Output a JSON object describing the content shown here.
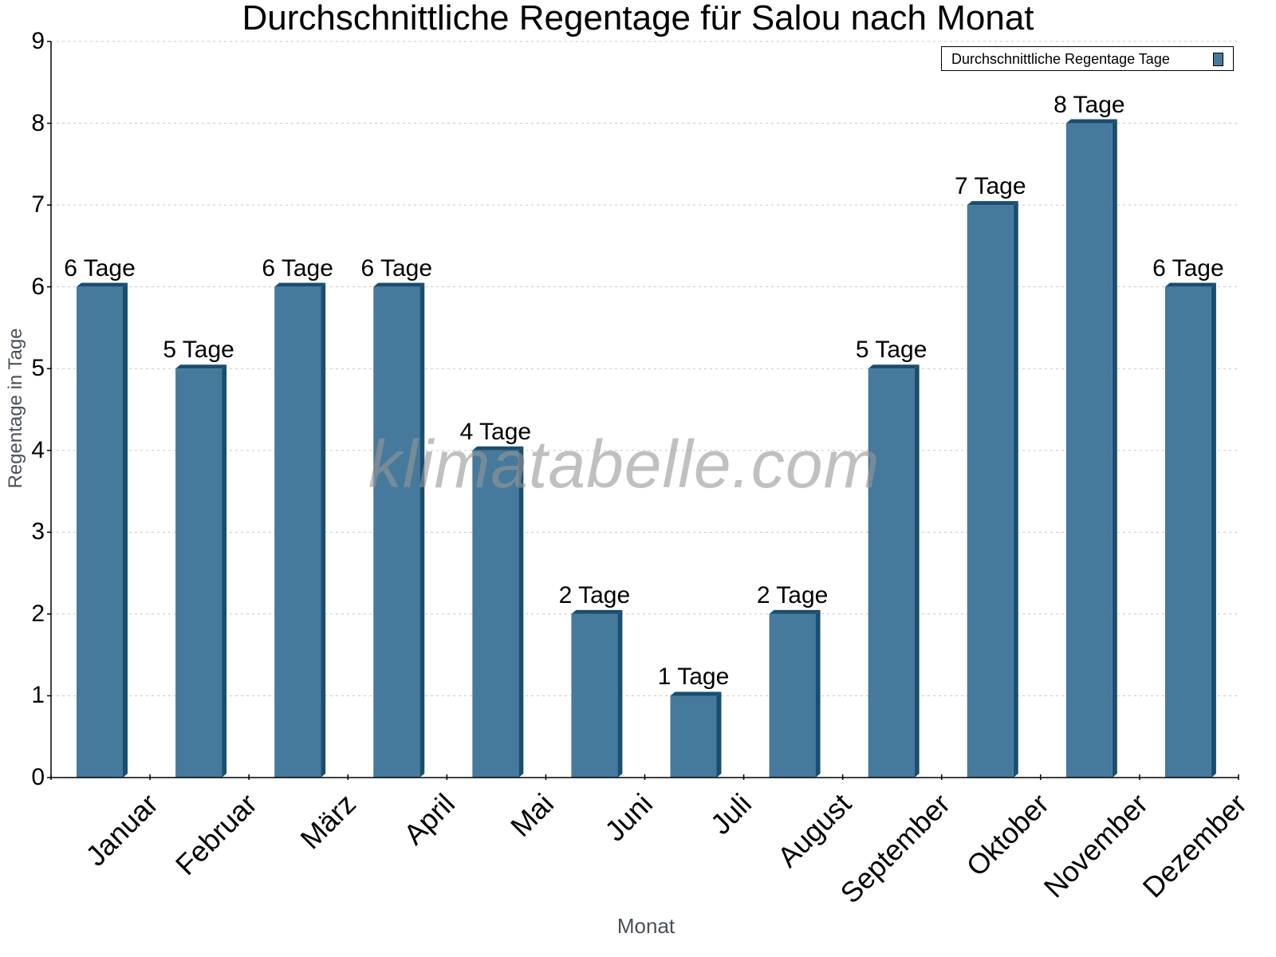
{
  "chart_data": {
    "type": "bar",
    "title": "Durchschnittliche Regentage für Salou nach Monat",
    "xlabel": "Monat",
    "ylabel": "Regentage in Tage",
    "ylim": [
      0,
      9
    ],
    "yticks": [
      0,
      1,
      2,
      3,
      4,
      5,
      6,
      7,
      8,
      9
    ],
    "grid": true,
    "legend_position": "top-right",
    "categories": [
      "Januar",
      "Februar",
      "März",
      "April",
      "Mai",
      "Juni",
      "Juli",
      "August",
      "September",
      "Oktober",
      "November",
      "Dezember"
    ],
    "series": [
      {
        "name": "Durchschnittliche Regentage Tage",
        "color": "#467a9c",
        "values": [
          6,
          5,
          6,
          6,
          4,
          2,
          1,
          2,
          5,
          7,
          8,
          6
        ]
      }
    ],
    "data_labels": [
      "6 Tage",
      "5 Tage",
      "6 Tage",
      "6 Tage",
      "4 Tage",
      "2 Tage",
      "1 Tage",
      "2 Tage",
      "5 Tage",
      "7 Tage",
      "8 Tage",
      "6 Tage"
    ],
    "watermark": "klimatabelle.com"
  },
  "colors": {
    "bar_front": "#467a9c",
    "bar_side": "#1a4e6e",
    "grid": "#c8c8c8",
    "axis": "#000000",
    "axis_title": "#4a5158"
  }
}
